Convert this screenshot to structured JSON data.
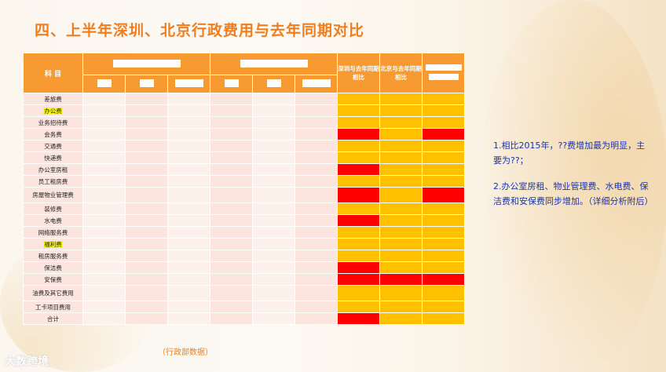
{
  "title": "四、上半年深圳、北京行政费用与去年同期对比",
  "table": {
    "header_subject": "科  目",
    "header_sz_compare": "深圳与去年同期相比",
    "header_bj_compare": "北京与去年同期相比",
    "rows": [
      {
        "name": "差旅费",
        "highlight": false,
        "sz": "yel",
        "bj": "yel",
        "t": "yel"
      },
      {
        "name": "办公费",
        "highlight": true,
        "sz": "yel",
        "bj": "yel",
        "t": "yel"
      },
      {
        "name": "业务招待费",
        "highlight": false,
        "sz": "yel",
        "bj": "yel",
        "t": "yel"
      },
      {
        "name": "会务费",
        "highlight": false,
        "sz": "red",
        "bj": "yel",
        "t": "red"
      },
      {
        "name": "交通费",
        "highlight": false,
        "sz": "yel",
        "bj": "yel",
        "t": "yel"
      },
      {
        "name": "快递费",
        "highlight": false,
        "sz": "yel",
        "bj": "yel",
        "t": "yel"
      },
      {
        "name": "办公室房租",
        "highlight": false,
        "sz": "red",
        "bj": "yel",
        "t": "yel"
      },
      {
        "name": "员工租房费",
        "highlight": false,
        "sz": "yel",
        "bj": "yel",
        "t": "yel"
      },
      {
        "name": "房屋物业管理费",
        "highlight": false,
        "sz": "red",
        "bj": "yel",
        "t": "red",
        "tall": true
      },
      {
        "name": "装修费",
        "highlight": false,
        "sz": "yel",
        "bj": "yel",
        "t": "yel"
      },
      {
        "name": "水电费",
        "highlight": false,
        "sz": "red",
        "bj": "yel",
        "t": "yel"
      },
      {
        "name": "网络服务费",
        "highlight": false,
        "sz": "yel",
        "bj": "yel",
        "t": "yel"
      },
      {
        "name": "福利费",
        "highlight": true,
        "sz": "yel",
        "bj": "yel",
        "t": "yel"
      },
      {
        "name": "租房服务费",
        "highlight": false,
        "sz": "yel",
        "bj": "yel",
        "t": "yel"
      },
      {
        "name": "保洁费",
        "highlight": false,
        "sz": "red",
        "bj": "yel",
        "t": "yel"
      },
      {
        "name": "安保费",
        "highlight": false,
        "sz": "red",
        "bj": "red",
        "t": "red"
      },
      {
        "name": "油费及其它费用",
        "highlight": false,
        "sz": "yel",
        "bj": "yel",
        "t": "yel",
        "tall": true
      },
      {
        "name": "工卡项目费用",
        "highlight": false,
        "sz": "yel",
        "bj": "yel",
        "t": "yel"
      },
      {
        "name": "合计",
        "highlight": false,
        "sz": "red",
        "bj": "yel",
        "t": "yel"
      }
    ]
  },
  "notes": [
    "1.相比2015年，??费增加最为明显，主要为??；",
    "2.办公室房租、物业管理费、水电费、保洁费和安保费同步增加。（详细分析附后）"
  ],
  "source": "（行政部数据）",
  "logo": "大数跨境",
  "colors": {
    "accent": "#f07d1e",
    "header": "#f79a32",
    "increase": "#ff0000",
    "normal": "#ffc000",
    "note_text": "#1a33b3"
  }
}
